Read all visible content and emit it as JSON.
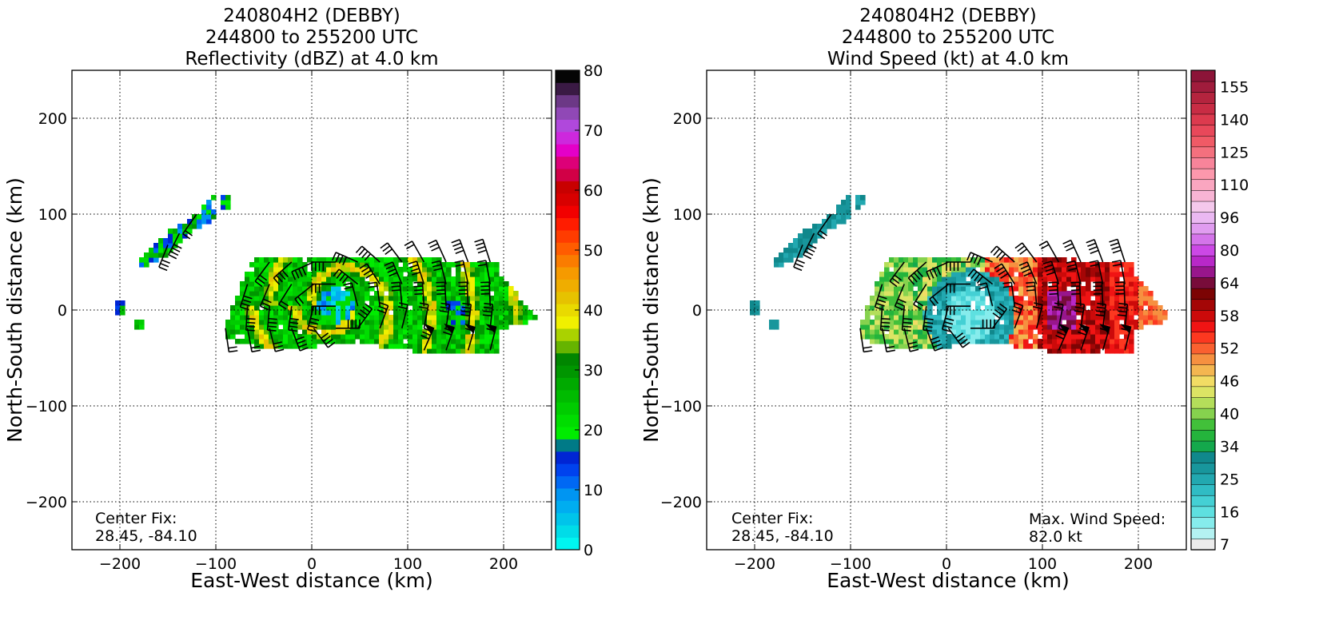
{
  "chart_data": [
    {
      "type": "heatmap",
      "title_lines": [
        "240804H2 (DEBBY)",
        "244800 to 255200 UTC",
        "Reflectivity (dBZ) at 4.0 km"
      ],
      "xlabel": "East-West distance (km)",
      "ylabel": "North-South distance (km)",
      "xlim": [
        -250,
        250
      ],
      "ylim": [
        -250,
        250
      ],
      "xticks": [
        -200,
        -100,
        0,
        100,
        200
      ],
      "yticks": [
        -200,
        -100,
        0,
        100,
        200
      ],
      "grid": true,
      "grid_style": "dotted",
      "colorbar": {
        "range": [
          0,
          80
        ],
        "tick_values": [
          0,
          10,
          20,
          30,
          40,
          50,
          60,
          70,
          80
        ],
        "tick_labels": [
          "0",
          "10",
          "20",
          "30",
          "40",
          "50",
          "60",
          "70",
          "80"
        ],
        "colors": [
          "#00f5f0",
          "#00dce8",
          "#00c4ea",
          "#00adf0",
          "#0095f2",
          "#0068f4",
          "#0042ee",
          "#0025d4",
          "#007a87",
          "#00ec00",
          "#00dd00",
          "#00cc00",
          "#00bb00",
          "#00aa00",
          "#009600",
          "#008600",
          "#66b400",
          "#aad200",
          "#f0f000",
          "#e9da00",
          "#e6c200",
          "#efad00",
          "#f69a00",
          "#fa7c00",
          "#ff5c00",
          "#ff3c00",
          "#ff1c00",
          "#f20000",
          "#d80000",
          "#c80000",
          "#d10046",
          "#dd0078",
          "#e400c8",
          "#cd28dd",
          "#b048dc",
          "#9048b6",
          "#6c3886",
          "#3a1a44",
          "#050505"
        ]
      },
      "annotations": [
        {
          "text_lines": [
            "Center Fix:",
            "28.45, -84.10"
          ],
          "position": "bottom-left"
        }
      ]
    },
    {
      "type": "heatmap",
      "title_lines": [
        "240804H2 (DEBBY)",
        "244800 to 255200 UTC",
        "Wind Speed (kt) at 4.0 km"
      ],
      "xlabel": "East-West distance (km)",
      "ylabel": "North-South distance (km)",
      "xlim": [
        -250,
        250
      ],
      "ylim": [
        -250,
        250
      ],
      "xticks": [
        -200,
        -100,
        0,
        100,
        200
      ],
      "yticks": [
        -200,
        -100,
        0,
        100,
        200
      ],
      "grid": true,
      "grid_style": "dotted",
      "colorbar": {
        "tick_labels": [
          "7",
          "16",
          "25",
          "34",
          "40",
          "46",
          "52",
          "58",
          "64",
          "80",
          "96",
          "110",
          "125",
          "140",
          "155"
        ],
        "tick_bin_index": [
          0,
          3,
          6,
          9,
          12,
          15,
          18,
          21,
          24,
          27,
          30,
          33,
          36,
          39,
          42
        ],
        "colors": [
          "#ececec",
          "#b4f2f2",
          "#86ecec",
          "#5ee0e0",
          "#44d0d4",
          "#30bcc4",
          "#22a8b0",
          "#18969c",
          "#10888c",
          "#14a84c",
          "#24b43c",
          "#42c03a",
          "#86d24e",
          "#b4de5a",
          "#dce464",
          "#f2dc64",
          "#f4b650",
          "#f69040",
          "#fa6030",
          "#fc3820",
          "#f01414",
          "#cc0a0a",
          "#a40606",
          "#7c0404",
          "#780c3a",
          "#98168c",
          "#b828c8",
          "#cc48e6",
          "#d474ea",
          "#e09cf0",
          "#eab8f2",
          "#f4c8ec",
          "#f8b4d4",
          "#faa6c0",
          "#fc98ac",
          "#f8849a",
          "#f4707e",
          "#f05a66",
          "#e8485a",
          "#dc3a4e",
          "#c82c44",
          "#b4243e",
          "#a01c3c",
          "#8c1438"
        ]
      },
      "annotations": [
        {
          "text_lines": [
            "Center Fix:",
            "28.45, -84.10"
          ],
          "position": "bottom-left"
        },
        {
          "text_lines": [
            "Max. Wind Speed:",
            "82.0 kt"
          ],
          "position": "bottom-right"
        }
      ]
    }
  ]
}
